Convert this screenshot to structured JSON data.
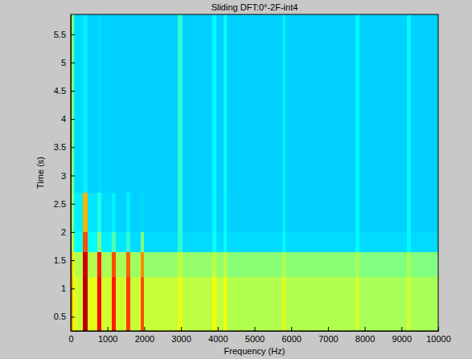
{
  "chart_data": {
    "type": "heatmap",
    "title": "Sliding DFT:0°-2F-int4",
    "x_label": "Frequency (Hz)",
    "y_label": "Time (s)",
    "xlim": [
      0,
      10000
    ],
    "xticks": [
      0,
      1000,
      2000,
      3000,
      4000,
      5000,
      6000,
      7000,
      8000,
      9000,
      10000
    ],
    "ylim": [
      0.25,
      5.85
    ],
    "yticks": [
      0.5,
      1,
      1.5,
      2,
      2.5,
      3,
      3.5,
      4,
      4.5,
      5,
      5.5
    ],
    "x_edges": [
      0,
      60,
      120,
      330,
      450,
      720,
      840,
      1110,
      1230,
      1500,
      1620,
      1900,
      2000,
      2900,
      3050,
      3850,
      3950,
      4150,
      4250,
      5750,
      5850,
      7750,
      7850,
      9150,
      9250,
      10000
    ],
    "y_edges": [
      0.25,
      1.2,
      1.65,
      2.0,
      2.7,
      5.85
    ],
    "values": [
      [
        70,
        62,
        58,
        95,
        60,
        88,
        58,
        85,
        58,
        82,
        57,
        80,
        57,
        60,
        56,
        62,
        56,
        62,
        55,
        60,
        55,
        58,
        54,
        58,
        54
      ],
      [
        68,
        60,
        55,
        92,
        55,
        85,
        54,
        80,
        54,
        78,
        53,
        74,
        52,
        56,
        52,
        56,
        52,
        56,
        51,
        55,
        51,
        54,
        50,
        54,
        50
      ],
      [
        58,
        45,
        38,
        80,
        38,
        50,
        36,
        45,
        35,
        42,
        34,
        50,
        34,
        42,
        34,
        38,
        34,
        38,
        34,
        37,
        34,
        37,
        34,
        37,
        34
      ],
      [
        55,
        42,
        36,
        70,
        35,
        40,
        34,
        36,
        33,
        36,
        33,
        34,
        33,
        42,
        33,
        37,
        33,
        37,
        33,
        36,
        33,
        37,
        33,
        37,
        33
      ],
      [
        55,
        40,
        34,
        36,
        33,
        34,
        33,
        33,
        33,
        33,
        33,
        33,
        33,
        42,
        33,
        37,
        33,
        38,
        33,
        36,
        33,
        37,
        33,
        37,
        33
      ]
    ],
    "clim": [
      0,
      100
    ]
  }
}
